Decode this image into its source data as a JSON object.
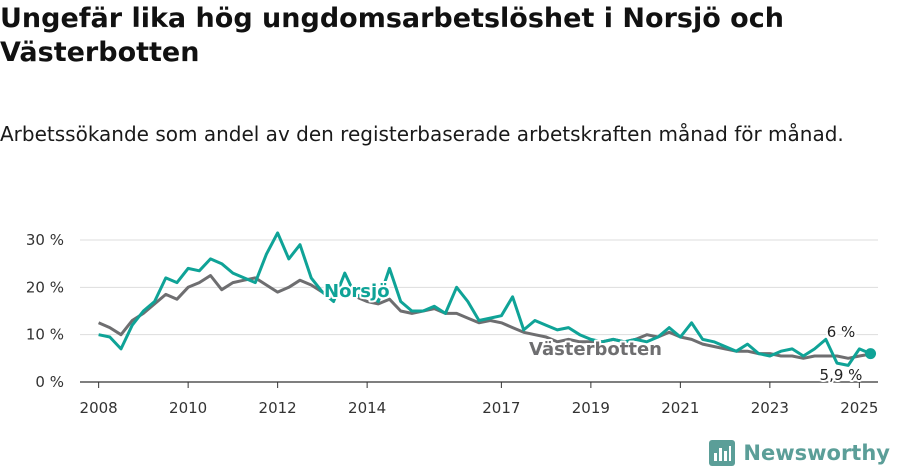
{
  "title": "Ungefär lika hög ungdomsarbetslöshet i Norsjö och Västerbotten",
  "subtitle": "Arbetssökande som andel av den registerbaserade arbetskraften månad för månad.",
  "brand": {
    "name": "Newsworthy",
    "color": "#5b9e98",
    "icon": "bar-chart-logo-icon"
  },
  "chart_data": {
    "type": "line",
    "title": "Ungefär lika hög ungdomsarbetslöshet i Norsjö och Västerbotten",
    "subtitle": "Arbetssökande som andel av den registerbaserade arbetskraften månad för månad.",
    "xlabel": "",
    "ylabel": "",
    "ylim": [
      0,
      30
    ],
    "y_ticks": [
      0,
      10,
      20,
      30
    ],
    "y_tick_labels": [
      "0 %",
      "10 %",
      "20 %",
      "30 %"
    ],
    "x_range": [
      "2007-08",
      "2025-06"
    ],
    "x_tick_labels": [
      "2008",
      "2010",
      "2012",
      "2014",
      "2017",
      "2019",
      "2021",
      "2023",
      "2025"
    ],
    "grid": "horizontal",
    "legend": "inline labels",
    "series": [
      {
        "name": "Norsjö",
        "color": "#0fa397",
        "last_value_label": "6 %",
        "points": [
          [
            "2008-01",
            10
          ],
          [
            "2008-04",
            9.5
          ],
          [
            "2008-07",
            7
          ],
          [
            "2008-10",
            12
          ],
          [
            "2009-01",
            15
          ],
          [
            "2009-04",
            17
          ],
          [
            "2009-07",
            22
          ],
          [
            "2009-10",
            21
          ],
          [
            "2010-01",
            24
          ],
          [
            "2010-04",
            23.5
          ],
          [
            "2010-07",
            26
          ],
          [
            "2010-10",
            25
          ],
          [
            "2011-01",
            23
          ],
          [
            "2011-04",
            22
          ],
          [
            "2011-07",
            21
          ],
          [
            "2011-10",
            27
          ],
          [
            "2012-01",
            31.5
          ],
          [
            "2012-04",
            26
          ],
          [
            "2012-07",
            29
          ],
          [
            "2012-10",
            22
          ],
          [
            "2013-01",
            19
          ],
          [
            "2013-04",
            17
          ],
          [
            "2013-07",
            23
          ],
          [
            "2013-10",
            18
          ],
          [
            "2014-01",
            19
          ],
          [
            "2014-04",
            17
          ],
          [
            "2014-07",
            24
          ],
          [
            "2014-10",
            17
          ],
          [
            "2015-01",
            15
          ],
          [
            "2015-04",
            15
          ],
          [
            "2015-07",
            16
          ],
          [
            "2015-10",
            14.5
          ],
          [
            "2016-01",
            20
          ],
          [
            "2016-04",
            17
          ],
          [
            "2016-07",
            13
          ],
          [
            "2016-10",
            13.5
          ],
          [
            "2017-01",
            14
          ],
          [
            "2017-04",
            18
          ],
          [
            "2017-07",
            11
          ],
          [
            "2017-10",
            13
          ],
          [
            "2018-01",
            12
          ],
          [
            "2018-04",
            11
          ],
          [
            "2018-07",
            11.5
          ],
          [
            "2018-10",
            10
          ],
          [
            "2019-01",
            9
          ],
          [
            "2019-04",
            8.5
          ],
          [
            "2019-07",
            9
          ],
          [
            "2019-10",
            8.5
          ],
          [
            "2020-01",
            9
          ],
          [
            "2020-04",
            8.5
          ],
          [
            "2020-07",
            9.5
          ],
          [
            "2020-10",
            11.5
          ],
          [
            "2021-01",
            9.5
          ],
          [
            "2021-04",
            12.5
          ],
          [
            "2021-07",
            9
          ],
          [
            "2021-10",
            8.5
          ],
          [
            "2022-01",
            7.5
          ],
          [
            "2022-04",
            6.5
          ],
          [
            "2022-07",
            8
          ],
          [
            "2022-10",
            6
          ],
          [
            "2023-01",
            5.5
          ],
          [
            "2023-04",
            6.5
          ],
          [
            "2023-07",
            7
          ],
          [
            "2023-10",
            5.5
          ],
          [
            "2024-01",
            7
          ],
          [
            "2024-04",
            9
          ],
          [
            "2024-07",
            4
          ],
          [
            "2024-10",
            3.5
          ],
          [
            "2025-01",
            7
          ],
          [
            "2025-04",
            6
          ]
        ]
      },
      {
        "name": "Västerbotten",
        "color": "#6e6e70",
        "last_value_label": "5,9 %",
        "points": [
          [
            "2008-01",
            12.5
          ],
          [
            "2008-04",
            11.5
          ],
          [
            "2008-07",
            10
          ],
          [
            "2008-10",
            13
          ],
          [
            "2009-01",
            14.5
          ],
          [
            "2009-04",
            16.5
          ],
          [
            "2009-07",
            18.5
          ],
          [
            "2009-10",
            17.5
          ],
          [
            "2010-01",
            20
          ],
          [
            "2010-04",
            21
          ],
          [
            "2010-07",
            22.5
          ],
          [
            "2010-10",
            19.5
          ],
          [
            "2011-01",
            21
          ],
          [
            "2011-04",
            21.5
          ],
          [
            "2011-07",
            22
          ],
          [
            "2011-10",
            20.5
          ],
          [
            "2012-01",
            19
          ],
          [
            "2012-04",
            20
          ],
          [
            "2012-07",
            21.5
          ],
          [
            "2012-10",
            20.5
          ],
          [
            "2013-01",
            19
          ],
          [
            "2013-04",
            18
          ],
          [
            "2013-07",
            19
          ],
          [
            "2013-10",
            18
          ],
          [
            "2014-01",
            17
          ],
          [
            "2014-04",
            16.5
          ],
          [
            "2014-07",
            17.5
          ],
          [
            "2014-10",
            15
          ],
          [
            "2015-01",
            14.5
          ],
          [
            "2015-04",
            15
          ],
          [
            "2015-07",
            15.5
          ],
          [
            "2015-10",
            14.5
          ],
          [
            "2016-01",
            14.5
          ],
          [
            "2016-04",
            13.5
          ],
          [
            "2016-07",
            12.5
          ],
          [
            "2016-10",
            13
          ],
          [
            "2017-01",
            12.5
          ],
          [
            "2017-04",
            11.5
          ],
          [
            "2017-07",
            10.5
          ],
          [
            "2017-10",
            10
          ],
          [
            "2018-01",
            9.5
          ],
          [
            "2018-04",
            8.5
          ],
          [
            "2018-07",
            9
          ],
          [
            "2018-10",
            8.5
          ],
          [
            "2019-01",
            8.5
          ],
          [
            "2019-04",
            8.5
          ],
          [
            "2019-07",
            9
          ],
          [
            "2019-10",
            8.5
          ],
          [
            "2020-01",
            9
          ],
          [
            "2020-04",
            10
          ],
          [
            "2020-07",
            9.5
          ],
          [
            "2020-10",
            10.5
          ],
          [
            "2021-01",
            9.5
          ],
          [
            "2021-04",
            9
          ],
          [
            "2021-07",
            8
          ],
          [
            "2021-10",
            7.5
          ],
          [
            "2022-01",
            7
          ],
          [
            "2022-04",
            6.5
          ],
          [
            "2022-07",
            6.5
          ],
          [
            "2022-10",
            6
          ],
          [
            "2023-01",
            6
          ],
          [
            "2023-04",
            5.5
          ],
          [
            "2023-07",
            5.5
          ],
          [
            "2023-10",
            5
          ],
          [
            "2024-01",
            5.5
          ],
          [
            "2024-04",
            5.5
          ],
          [
            "2024-07",
            5.5
          ],
          [
            "2024-10",
            5
          ],
          [
            "2025-01",
            5.5
          ],
          [
            "2025-04",
            5.9
          ]
        ]
      }
    ]
  }
}
